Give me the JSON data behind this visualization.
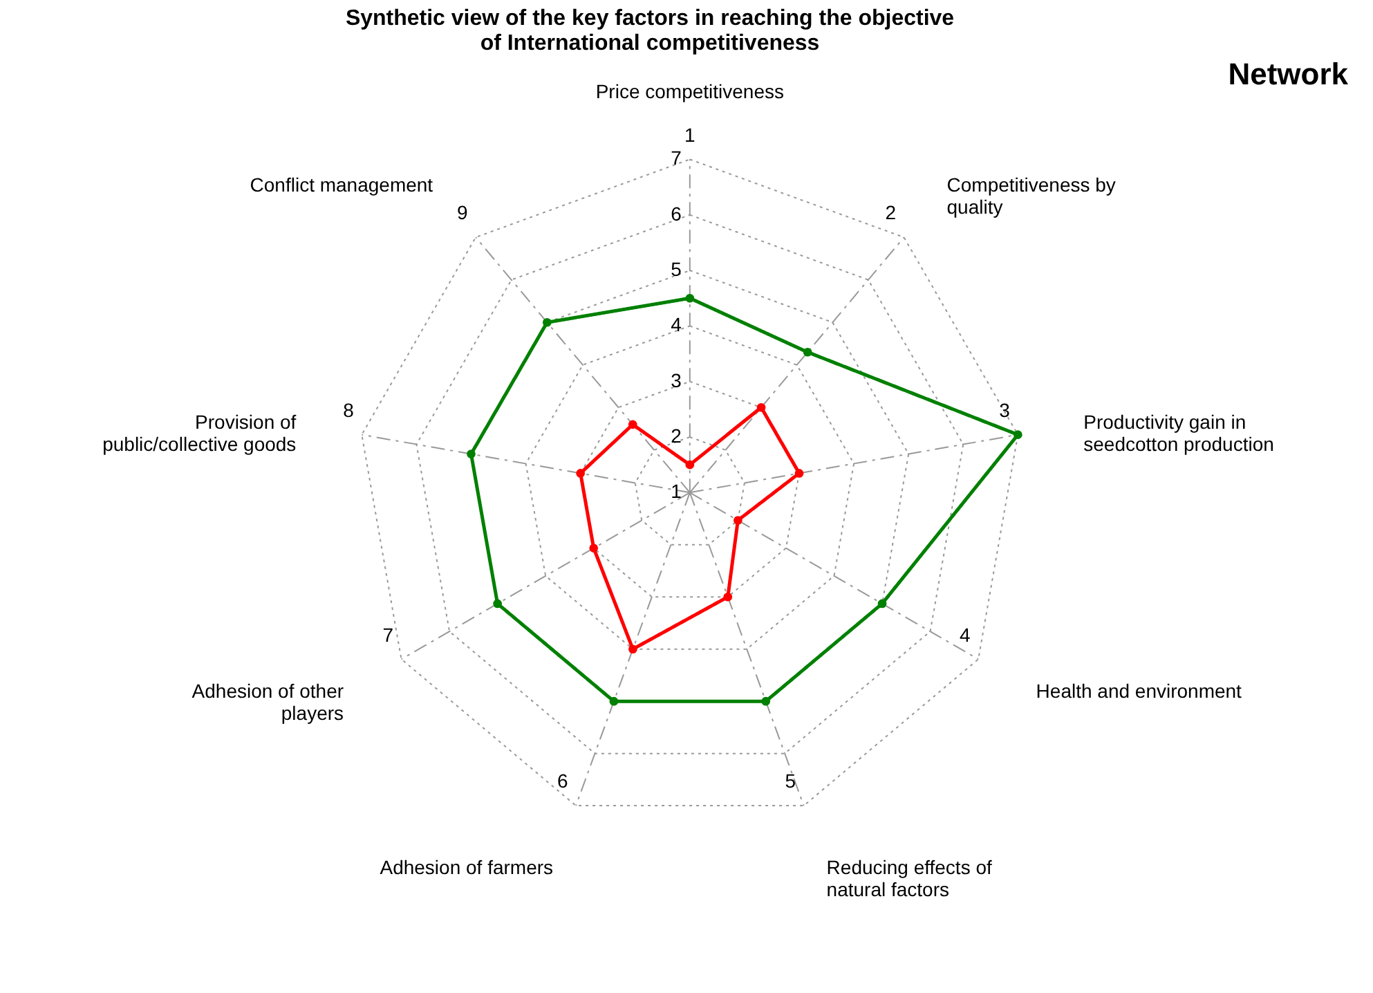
{
  "chart_data": {
    "type": "radar",
    "title": "Synthetic view of the key factors in reaching the objective of International competitiveness",
    "subtitle": "Network",
    "categories": [
      "Price competitiveness",
      "Competitiveness by quality",
      "Productivity gain in seedcotton production",
      "Health and environment",
      "Reducing effects of natural factors",
      "Adhesion of farmers",
      "Adhesion of other players",
      "Provision of public/collective goods",
      "Conflict management"
    ],
    "series": [
      {
        "color": "#008000",
        "values": [
          4.5,
          4.3,
          7,
          5,
          5,
          5,
          5,
          5,
          5
        ]
      },
      {
        "color": "#ff0000",
        "values": [
          1.5,
          3,
          3,
          2,
          3,
          4,
          3,
          3,
          2.6
        ]
      }
    ],
    "ylim": [
      1,
      7
    ],
    "yticks": [
      1,
      2,
      3,
      4,
      5,
      6,
      7
    ],
    "grid": true,
    "marker": "circle",
    "line_style": "solid",
    "annotations": [
      "1",
      "2",
      "3",
      "4",
      "5",
      "6",
      "7",
      "8",
      "9"
    ]
  }
}
